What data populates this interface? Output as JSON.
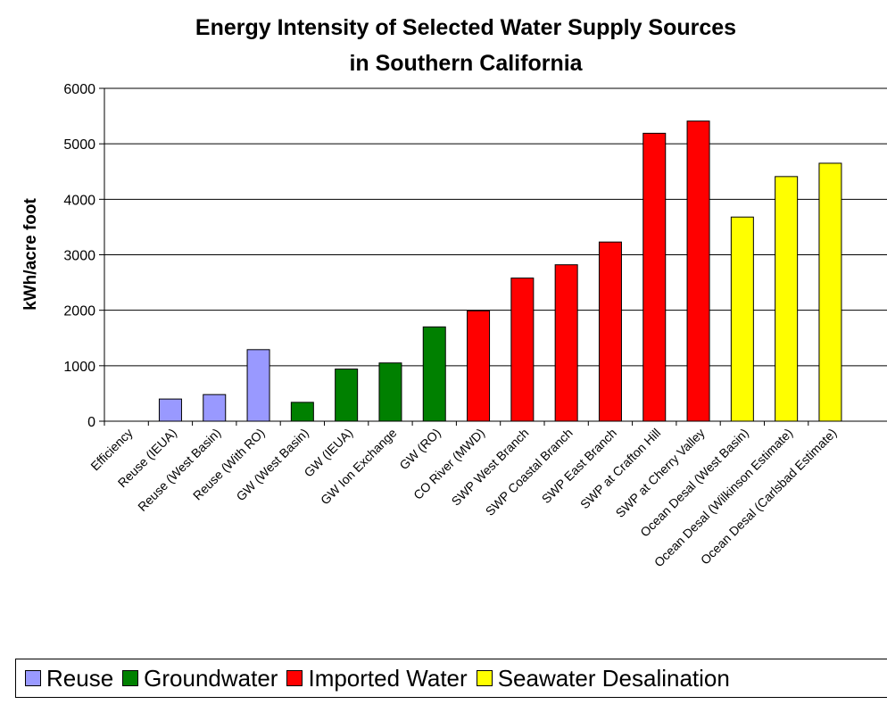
{
  "chart_data": {
    "type": "bar",
    "title": "Energy Intensity of Selected Water Supply Sources in Southern California",
    "title_lines": [
      "Energy Intensity of Selected Water Supply Sources",
      "in Southern California"
    ],
    "ylabel": "kWh/acre foot",
    "xlabel": "",
    "ylim": [
      0,
      6000
    ],
    "yticks": [
      0,
      1000,
      2000,
      3000,
      4000,
      5000,
      6000
    ],
    "grid": true,
    "legend_position": "bottom",
    "categories": [
      "Efficiency",
      "Reuse (IEUA)",
      "Reuse (West Basin)",
      "Reuse (With RO)",
      "GW (West Basin)",
      "GW (IEUA)",
      "GW Ion Exchange",
      "GW (RO)",
      "CO River (MWD)",
      "SWP West Branch",
      "SWP Coastal Branch",
      "SWP East Branch",
      "SWP at Crafton Hill",
      "SWP at Cherry Valley",
      "Ocean Desal (West Basin)",
      "Ocean Desal (Wilkinson Estimate)",
      "Ocean Desal (Carlsbad Estimate)"
    ],
    "values": [
      0,
      400,
      480,
      1290,
      340,
      940,
      1050,
      1700,
      1990,
      2580,
      2820,
      3230,
      5190,
      5410,
      3680,
      4410,
      4650
    ],
    "groups": [
      "none",
      "reuse",
      "reuse",
      "reuse",
      "groundwater",
      "groundwater",
      "groundwater",
      "groundwater",
      "imported",
      "imported",
      "imported",
      "imported",
      "imported",
      "imported",
      "desal",
      "desal",
      "desal"
    ],
    "series": [
      {
        "key": "reuse",
        "name": "Reuse",
        "color": "#9999ff"
      },
      {
        "key": "groundwater",
        "name": "Groundwater",
        "color": "#008000"
      },
      {
        "key": "imported",
        "name": "Imported Water",
        "color": "#ff0000"
      },
      {
        "key": "desal",
        "name": "Seawater Desalination",
        "color": "#ffff00"
      }
    ]
  }
}
